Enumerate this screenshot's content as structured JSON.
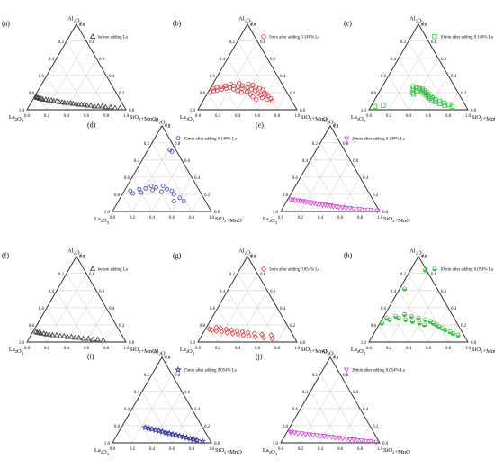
{
  "chart_data": [
    {
      "type": "scatter",
      "subtype": "ternary",
      "panel_label": "(a)",
      "apex_label": "Al2O3",
      "left_label": "La2O3",
      "right_label": "SiO2+MnO",
      "ticks": [
        "0.2",
        "0.4",
        "0.6",
        "0.8",
        "1.0"
      ],
      "zero_label": "0.0",
      "legend": "before adding La",
      "marker": "triangle",
      "color": "#333333",
      "points": [
        [
          0.02,
          0.93
        ],
        [
          0.02,
          0.88
        ],
        [
          0.03,
          0.83
        ],
        [
          0.03,
          0.78
        ],
        [
          0.04,
          0.74
        ],
        [
          0.04,
          0.7
        ],
        [
          0.04,
          0.66
        ],
        [
          0.05,
          0.62
        ],
        [
          0.05,
          0.58
        ],
        [
          0.06,
          0.55
        ],
        [
          0.06,
          0.52
        ],
        [
          0.06,
          0.49
        ],
        [
          0.07,
          0.46
        ],
        [
          0.07,
          0.43
        ],
        [
          0.08,
          0.4
        ],
        [
          0.08,
          0.37
        ],
        [
          0.08,
          0.34
        ],
        [
          0.09,
          0.31
        ],
        [
          0.09,
          0.28
        ],
        [
          0.1,
          0.25
        ],
        [
          0.1,
          0.22
        ],
        [
          0.11,
          0.19
        ],
        [
          0.11,
          0.16
        ],
        [
          0.12,
          0.13
        ],
        [
          0.12,
          0.1
        ],
        [
          0.13,
          0.08
        ],
        [
          0.13,
          0.06
        ],
        [
          0.14,
          0.04
        ],
        [
          0.14,
          0.03
        ],
        [
          0.15,
          0.02
        ]
      ]
    },
    {
      "type": "scatter",
      "subtype": "ternary",
      "panel_label": "(b)",
      "apex_label": "Al2O3",
      "left_label": "La2O3",
      "right_label": "SiO2+MnO",
      "ticks": [
        "0.2",
        "0.4",
        "0.6",
        "0.8",
        "1.0"
      ],
      "zero_label": "0.0",
      "legend": "5min after adding 0.148% La",
      "marker": "circle",
      "color": "#e03030",
      "points": [
        [
          0.1,
          0.7
        ],
        [
          0.13,
          0.67
        ],
        [
          0.12,
          0.64
        ],
        [
          0.16,
          0.63
        ],
        [
          0.18,
          0.6
        ],
        [
          0.14,
          0.58
        ],
        [
          0.2,
          0.57
        ],
        [
          0.17,
          0.55
        ],
        [
          0.23,
          0.54
        ],
        [
          0.12,
          0.53
        ],
        [
          0.19,
          0.51
        ],
        [
          0.25,
          0.5
        ],
        [
          0.15,
          0.48
        ],
        [
          0.22,
          0.47
        ],
        [
          0.27,
          0.45
        ],
        [
          0.18,
          0.44
        ],
        [
          0.24,
          0.42
        ],
        [
          0.29,
          0.41
        ],
        [
          0.21,
          0.39
        ],
        [
          0.26,
          0.37
        ],
        [
          0.3,
          0.36
        ],
        [
          0.2,
          0.34
        ],
        [
          0.25,
          0.32
        ],
        [
          0.28,
          0.31
        ],
        [
          0.22,
          0.29
        ],
        [
          0.27,
          0.27
        ],
        [
          0.31,
          0.26
        ],
        [
          0.24,
          0.24
        ],
        [
          0.28,
          0.22
        ],
        [
          0.26,
          0.19
        ],
        [
          0.3,
          0.18
        ],
        [
          0.25,
          0.16
        ],
        [
          0.28,
          0.14
        ],
        [
          0.24,
          0.12
        ],
        [
          0.27,
          0.1
        ],
        [
          0.23,
          0.08
        ],
        [
          0.26,
          0.06
        ],
        [
          0.22,
          0.05
        ],
        [
          0.25,
          0.03
        ],
        [
          0.2,
          0.02
        ]
      ]
    },
    {
      "type": "scatter",
      "subtype": "ternary",
      "panel_label": "(c)",
      "apex_label": "Al2O3",
      "left_label": "La2O3",
      "right_label": "SiO2+MnO",
      "ticks": [
        "0.2",
        "0.4",
        "0.6",
        "0.8",
        "1.0"
      ],
      "zero_label": "0.0",
      "legend": "10min after adding 0.148% La",
      "marker": "square",
      "color": "#2ec43a",
      "points": [
        [
          0.04,
          0.82
        ],
        [
          0.06,
          0.78
        ],
        [
          0.05,
          0.74
        ],
        [
          0.08,
          0.72
        ],
        [
          0.07,
          0.68
        ],
        [
          0.1,
          0.66
        ],
        [
          0.09,
          0.63
        ],
        [
          0.12,
          0.61
        ],
        [
          0.11,
          0.58
        ],
        [
          0.14,
          0.57
        ],
        [
          0.13,
          0.55
        ],
        [
          0.16,
          0.54
        ],
        [
          0.15,
          0.52
        ],
        [
          0.18,
          0.51
        ],
        [
          0.17,
          0.49
        ],
        [
          0.2,
          0.48
        ],
        [
          0.19,
          0.46
        ],
        [
          0.22,
          0.45
        ],
        [
          0.21,
          0.43
        ],
        [
          0.24,
          0.42
        ],
        [
          0.23,
          0.4
        ],
        [
          0.25,
          0.38
        ],
        [
          0.22,
          0.37
        ],
        [
          0.26,
          0.35
        ],
        [
          0.24,
          0.33
        ],
        [
          0.2,
          0.34
        ],
        [
          0.18,
          0.36
        ],
        [
          0.27,
          0.31
        ],
        [
          0.05,
          0.12
        ],
        [
          0.04,
          0.04
        ]
      ]
    },
    {
      "type": "scatter",
      "subtype": "ternary",
      "panel_label": "(d)",
      "apex_label": "Al2O3",
      "left_label": "La2O3",
      "right_label": "SiO2+MnO",
      "ticks": [
        "0.2",
        "0.4",
        "0.6",
        "0.8",
        "1.0"
      ],
      "zero_label": "0.0",
      "legend": "15min after adding 0.148% La",
      "marker": "hexagon",
      "color": "#4a4ad0",
      "points": [
        [
          0.12,
          0.66
        ],
        [
          0.16,
          0.6
        ],
        [
          0.12,
          0.56
        ],
        [
          0.2,
          0.52
        ],
        [
          0.24,
          0.48
        ],
        [
          0.26,
          0.42
        ],
        [
          0.23,
          0.38
        ],
        [
          0.3,
          0.36
        ],
        [
          0.28,
          0.3
        ],
        [
          0.25,
          0.28
        ],
        [
          0.3,
          0.24
        ],
        [
          0.27,
          0.2
        ],
        [
          0.22,
          0.18
        ],
        [
          0.26,
          0.14
        ],
        [
          0.21,
          0.1
        ],
        [
          0.24,
          0.06
        ],
        [
          0.7,
          0.25
        ],
        [
          0.72,
          0.22
        ]
      ]
    },
    {
      "type": "scatter",
      "subtype": "ternary",
      "panel_label": "(e)",
      "apex_label": "Al2O3",
      "left_label": "La2O3",
      "right_label": "SiO2+MnO",
      "ticks": [
        "0.2",
        "0.4",
        "0.6",
        "0.8",
        "1.0"
      ],
      "zero_label": "0.0",
      "legend": "20min after adding 0.148% La",
      "marker": "inverted-triangle",
      "color": "#e040e0",
      "points": [
        [
          0.01,
          0.97
        ],
        [
          0.02,
          0.9
        ],
        [
          0.02,
          0.84
        ],
        [
          0.03,
          0.78
        ],
        [
          0.03,
          0.72
        ],
        [
          0.04,
          0.68
        ],
        [
          0.04,
          0.64
        ],
        [
          0.05,
          0.6
        ],
        [
          0.05,
          0.56
        ],
        [
          0.06,
          0.53
        ],
        [
          0.06,
          0.5
        ],
        [
          0.07,
          0.47
        ],
        [
          0.07,
          0.44
        ],
        [
          0.08,
          0.41
        ],
        [
          0.08,
          0.38
        ],
        [
          0.09,
          0.35
        ],
        [
          0.09,
          0.32
        ],
        [
          0.1,
          0.29
        ],
        [
          0.1,
          0.26
        ],
        [
          0.11,
          0.23
        ],
        [
          0.11,
          0.2
        ],
        [
          0.12,
          0.17
        ],
        [
          0.12,
          0.14
        ],
        [
          0.13,
          0.11
        ],
        [
          0.13,
          0.08
        ],
        [
          0.14,
          0.05
        ],
        [
          0.14,
          0.03
        ]
      ]
    },
    {
      "type": "scatter",
      "subtype": "ternary",
      "panel_label": "(f)",
      "apex_label": "Al2O3",
      "left_label": "La2O3",
      "right_label": "SiO2+MnO",
      "ticks": [
        "0.2",
        "0.4",
        "0.6",
        "0.8",
        "1.0"
      ],
      "zero_label": "0.0",
      "legend": "before adding La",
      "marker": "triangle",
      "color": "#333333",
      "points": [
        [
          0.02,
          0.76
        ],
        [
          0.03,
          0.7
        ],
        [
          0.03,
          0.65
        ],
        [
          0.04,
          0.6
        ],
        [
          0.04,
          0.55
        ],
        [
          0.05,
          0.5
        ],
        [
          0.05,
          0.46
        ],
        [
          0.06,
          0.42
        ],
        [
          0.06,
          0.38
        ],
        [
          0.07,
          0.34
        ],
        [
          0.07,
          0.3
        ],
        [
          0.08,
          0.26
        ],
        [
          0.08,
          0.22
        ],
        [
          0.09,
          0.18
        ],
        [
          0.09,
          0.15
        ],
        [
          0.1,
          0.12
        ],
        [
          0.1,
          0.09
        ],
        [
          0.11,
          0.07
        ],
        [
          0.11,
          0.05
        ],
        [
          0.12,
          0.03
        ]
      ]
    },
    {
      "type": "scatter",
      "subtype": "ternary",
      "panel_label": "(g)",
      "apex_label": "Al2O3",
      "left_label": "La2O3",
      "right_label": "SiO2+MnO",
      "ticks": [
        "0.2",
        "0.4",
        "0.6",
        "0.8",
        "1.0"
      ],
      "zero_label": "0.0",
      "legend": "5min after adding 0.054% La",
      "marker": "diamond",
      "color": "#e03a3a",
      "points": [
        [
          0.04,
          0.73
        ],
        [
          0.08,
          0.7
        ],
        [
          0.05,
          0.64
        ],
        [
          0.09,
          0.6
        ],
        [
          0.06,
          0.55
        ],
        [
          0.1,
          0.52
        ],
        [
          0.07,
          0.48
        ],
        [
          0.11,
          0.45
        ],
        [
          0.08,
          0.42
        ],
        [
          0.12,
          0.39
        ],
        [
          0.09,
          0.36
        ],
        [
          0.13,
          0.33
        ],
        [
          0.1,
          0.3
        ],
        [
          0.14,
          0.27
        ],
        [
          0.11,
          0.24
        ],
        [
          0.15,
          0.21
        ],
        [
          0.12,
          0.18
        ],
        [
          0.16,
          0.15
        ],
        [
          0.13,
          0.12
        ],
        [
          0.17,
          0.1
        ],
        [
          0.14,
          0.07
        ],
        [
          0.15,
          0.04
        ]
      ]
    },
    {
      "type": "scatter",
      "subtype": "ternary",
      "panel_label": "(h)",
      "apex_label": "Al2O3",
      "left_label": "La2O3",
      "right_label": "SiO2+MnO",
      "ticks": [
        "0.2",
        "0.4",
        "0.6",
        "0.8",
        "1.0"
      ],
      "zero_label": "0.0",
      "legend": "10min after adding 0.054% La",
      "marker": "circle-half",
      "color": "#2ec43a",
      "points": [
        [
          0.08,
          0.86
        ],
        [
          0.1,
          0.8
        ],
        [
          0.12,
          0.76
        ],
        [
          0.14,
          0.7
        ],
        [
          0.16,
          0.66
        ],
        [
          0.18,
          0.62
        ],
        [
          0.2,
          0.58
        ],
        [
          0.22,
          0.54
        ],
        [
          0.24,
          0.5
        ],
        [
          0.2,
          0.46
        ],
        [
          0.26,
          0.44
        ],
        [
          0.22,
          0.4
        ],
        [
          0.28,
          0.36
        ],
        [
          0.24,
          0.32
        ],
        [
          0.3,
          0.28
        ],
        [
          0.26,
          0.24
        ],
        [
          0.32,
          0.2
        ],
        [
          0.28,
          0.16
        ],
        [
          0.3,
          0.12
        ],
        [
          0.26,
          0.08
        ],
        [
          0.28,
          0.04
        ],
        [
          0.22,
          0.02
        ],
        [
          0.84,
          0.15
        ],
        [
          0.62,
          0.05
        ]
      ]
    },
    {
      "type": "scatter",
      "subtype": "ternary",
      "panel_label": "(i)",
      "apex_label": "Al2O3",
      "left_label": "La2O3",
      "right_label": "SiO2+MnO",
      "ticks": [
        "0.2",
        "0.4",
        "0.6",
        "0.8",
        "1.0"
      ],
      "zero_label": "0.0",
      "legend": "15min after adding 0.054% La",
      "marker": "star",
      "color": "#2a2aa0",
      "points": [
        [
          0.02,
          0.9
        ],
        [
          0.03,
          0.84
        ],
        [
          0.04,
          0.8
        ],
        [
          0.05,
          0.76
        ],
        [
          0.06,
          0.72
        ],
        [
          0.07,
          0.68
        ],
        [
          0.08,
          0.64
        ],
        [
          0.09,
          0.6
        ],
        [
          0.1,
          0.56
        ],
        [
          0.11,
          0.52
        ],
        [
          0.12,
          0.48
        ],
        [
          0.13,
          0.44
        ],
        [
          0.14,
          0.4
        ],
        [
          0.15,
          0.36
        ],
        [
          0.16,
          0.32
        ],
        [
          0.17,
          0.28
        ],
        [
          0.18,
          0.24
        ]
      ]
    },
    {
      "type": "scatter",
      "subtype": "ternary",
      "panel_label": "(j)",
      "apex_label": "Al2O3",
      "left_label": "La2O3",
      "right_label": "SiO2+MnO",
      "ticks": [
        "0.2",
        "0.4",
        "0.6",
        "0.8",
        "1.0"
      ],
      "zero_label": "0.0",
      "legend": "20min after adding 0.054% La",
      "marker": "inverted-triangle",
      "color": "#e040e0",
      "points": [
        [
          0.01,
          0.96
        ],
        [
          0.02,
          0.9
        ],
        [
          0.02,
          0.85
        ],
        [
          0.03,
          0.8
        ],
        [
          0.03,
          0.76
        ],
        [
          0.04,
          0.72
        ],
        [
          0.04,
          0.68
        ],
        [
          0.05,
          0.64
        ],
        [
          0.05,
          0.6
        ],
        [
          0.06,
          0.56
        ],
        [
          0.06,
          0.52
        ],
        [
          0.07,
          0.48
        ],
        [
          0.07,
          0.44
        ],
        [
          0.08,
          0.4
        ],
        [
          0.08,
          0.36
        ],
        [
          0.09,
          0.32
        ],
        [
          0.09,
          0.28
        ],
        [
          0.1,
          0.24
        ],
        [
          0.1,
          0.2
        ],
        [
          0.11,
          0.16
        ],
        [
          0.11,
          0.12
        ],
        [
          0.12,
          0.08
        ],
        [
          0.12,
          0.05
        ],
        [
          0.13,
          0.03
        ]
      ]
    }
  ]
}
